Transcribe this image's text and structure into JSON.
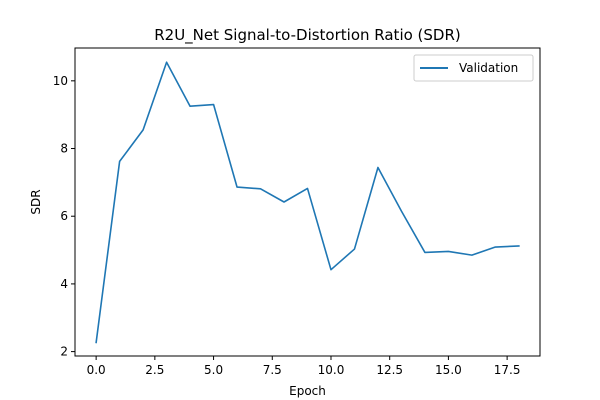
{
  "chart_data": {
    "type": "line",
    "title": "R2U_Net Signal-to-Distortion Ratio (SDR)",
    "xlabel": "Epoch",
    "ylabel": "SDR",
    "xlim": [
      -0.9,
      18.9
    ],
    "ylim": [
      1.87,
      10.97
    ],
    "xticks": [
      0.0,
      2.5,
      5.0,
      7.5,
      10.0,
      12.5,
      15.0,
      17.5
    ],
    "xtick_labels": [
      "0.0",
      "2.5",
      "5.0",
      "7.5",
      "10.0",
      "12.5",
      "15.0",
      "17.5"
    ],
    "yticks": [
      2,
      4,
      6,
      8,
      10
    ],
    "ytick_labels": [
      "2",
      "4",
      "6",
      "8",
      "10"
    ],
    "grid": false,
    "legend_position": "upper right",
    "series": [
      {
        "name": "Validation",
        "color": "#1f77b4",
        "x": [
          0,
          1,
          2,
          3,
          4,
          5,
          6,
          7,
          8,
          9,
          10,
          11,
          12,
          13,
          14,
          15,
          16,
          17,
          18
        ],
        "values": [
          2.27,
          7.62,
          8.55,
          10.55,
          9.25,
          9.3,
          6.86,
          6.81,
          6.42,
          6.82,
          4.42,
          5.03,
          7.44,
          6.15,
          4.93,
          4.96,
          4.85,
          5.09,
          5.12
        ]
      }
    ]
  }
}
